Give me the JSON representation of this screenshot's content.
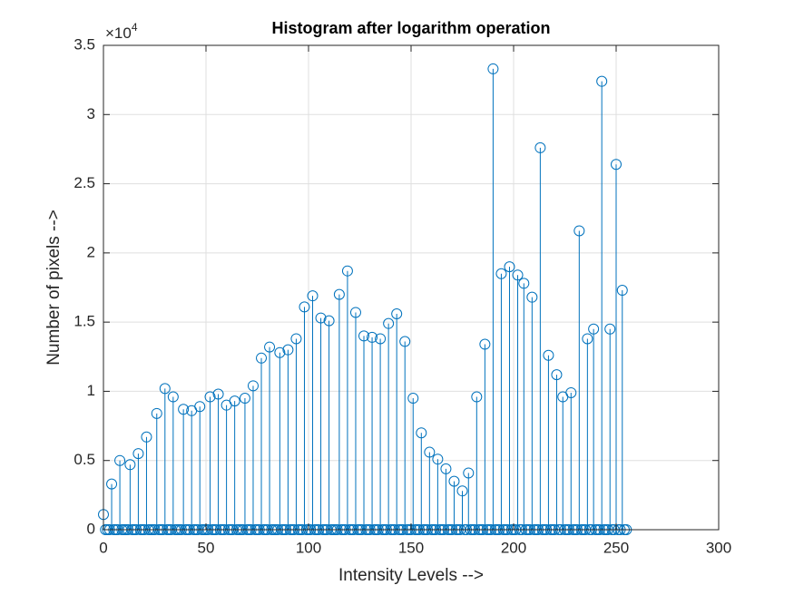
{
  "chart_data": {
    "type": "stem",
    "title": "Histogram after logarithm operation",
    "xlabel": "Intensity Levels -->",
    "ylabel": "Number of pixels  -->",
    "y_exponent_base": "×10",
    "y_exponent_power": "4",
    "color": "#0072bd",
    "grid": true,
    "xlim": [
      0,
      300
    ],
    "xticks": [
      0,
      50,
      100,
      150,
      200,
      250,
      300
    ],
    "ylim": [
      0,
      35000
    ],
    "yticks": [
      {
        "value": 0,
        "label": "0"
      },
      {
        "value": 5000,
        "label": "0.5"
      },
      {
        "value": 10000,
        "label": "1"
      },
      {
        "value": 15000,
        "label": "1.5"
      },
      {
        "value": 20000,
        "label": "2"
      },
      {
        "value": 25000,
        "label": "2.5"
      },
      {
        "value": 30000,
        "label": "3"
      },
      {
        "value": 35000,
        "label": "3.5"
      }
    ],
    "x": [
      0,
      1,
      2,
      3,
      4,
      5,
      6,
      7,
      8,
      9,
      10,
      11,
      12,
      13,
      14,
      15,
      16,
      17,
      18,
      19,
      20,
      21,
      22,
      23,
      24,
      25,
      26,
      27,
      28,
      29,
      30,
      31,
      32,
      33,
      34,
      35,
      36,
      37,
      38,
      39,
      40,
      41,
      42,
      43,
      44,
      45,
      46,
      47,
      48,
      49,
      50,
      51,
      52,
      53,
      54,
      55,
      56,
      57,
      58,
      59,
      60,
      61,
      62,
      63,
      64,
      65,
      66,
      67,
      68,
      69,
      70,
      71,
      72,
      73,
      74,
      75,
      76,
      77,
      78,
      79,
      80,
      81,
      82,
      83,
      84,
      85,
      86,
      87,
      88,
      89,
      90,
      91,
      92,
      93,
      94,
      95,
      96,
      97,
      98,
      99,
      100,
      101,
      102,
      103,
      104,
      105,
      106,
      107,
      108,
      109,
      110,
      111,
      112,
      113,
      114,
      115,
      116,
      117,
      118,
      119,
      120,
      121,
      122,
      123,
      124,
      125,
      126,
      127,
      128,
      129,
      130,
      131,
      132,
      133,
      134,
      135,
      136,
      137,
      138,
      139,
      140,
      141,
      142,
      143,
      144,
      145,
      146,
      147,
      148,
      149,
      150,
      151,
      152,
      153,
      154,
      155,
      156,
      157,
      158,
      159,
      160,
      161,
      162,
      163,
      164,
      165,
      166,
      167,
      168,
      169,
      170,
      171,
      172,
      173,
      174,
      175,
      176,
      177,
      178,
      179,
      180,
      181,
      182,
      183,
      184,
      185,
      186,
      187,
      188,
      189,
      190,
      191,
      192,
      193,
      194,
      195,
      196,
      197,
      198,
      199,
      200,
      201,
      202,
      203,
      204,
      205,
      206,
      207,
      208,
      209,
      210,
      211,
      212,
      213,
      214,
      215,
      216,
      217,
      218,
      219,
      220,
      221,
      222,
      223,
      224,
      225,
      226,
      227,
      228,
      229,
      230,
      231,
      232,
      233,
      234,
      235,
      236,
      237,
      238,
      239,
      240,
      241,
      242,
      243,
      244,
      245,
      246,
      247,
      248,
      249,
      250,
      251,
      252,
      253,
      254,
      255
    ],
    "values": [
      1100,
      0,
      0,
      0,
      3300,
      0,
      0,
      0,
      5000,
      0,
      0,
      0,
      0,
      4700,
      0,
      0,
      0,
      5500,
      0,
      0,
      0,
      6700,
      0,
      0,
      0,
      0,
      8400,
      0,
      0,
      0,
      10200,
      0,
      0,
      0,
      9600,
      0,
      0,
      0,
      0,
      8700,
      0,
      0,
      0,
      8600,
      0,
      0,
      0,
      8900,
      0,
      0,
      0,
      0,
      9600,
      0,
      0,
      0,
      9800,
      0,
      0,
      0,
      9000,
      0,
      0,
      0,
      9300,
      0,
      0,
      0,
      0,
      9500,
      0,
      0,
      0,
      10400,
      0,
      0,
      0,
      12400,
      0,
      0,
      0,
      13200,
      0,
      0,
      0,
      0,
      12800,
      0,
      0,
      0,
      13000,
      0,
      0,
      0,
      13800,
      0,
      0,
      0,
      16100,
      0,
      0,
      0,
      16900,
      0,
      0,
      0,
      15300,
      0,
      0,
      0,
      15100,
      0,
      0,
      0,
      0,
      17000,
      0,
      0,
      0,
      18700,
      0,
      0,
      0,
      15700,
      0,
      0,
      0,
      14000,
      0,
      0,
      0,
      13900,
      0,
      0,
      0,
      13800,
      0,
      0,
      0,
      14900,
      0,
      0,
      0,
      15600,
      0,
      0,
      0,
      13600,
      0,
      0,
      0,
      9500,
      0,
      0,
      0,
      7000,
      0,
      0,
      0,
      5600,
      0,
      0,
      0,
      5100,
      0,
      0,
      0,
      4400,
      0,
      0,
      0,
      3500,
      0,
      0,
      0,
      2800,
      0,
      0,
      4100,
      0,
      0,
      0,
      9600,
      0,
      0,
      0,
      13400,
      0,
      0,
      0,
      33300,
      0,
      0,
      0,
      18500,
      0,
      0,
      0,
      19000,
      0,
      0,
      0,
      18400,
      0,
      0,
      17800,
      0,
      0,
      0,
      16800,
      0,
      0,
      0,
      27600,
      0,
      0,
      0,
      12600,
      0,
      0,
      0,
      11200,
      0,
      0,
      9600,
      0,
      0,
      0,
      9900,
      0,
      0,
      0,
      21600,
      0,
      0,
      0,
      13800,
      0,
      0,
      14500,
      0,
      0,
      0,
      32400,
      0,
      0,
      0,
      14500,
      0,
      0,
      26400,
      0,
      0,
      17300,
      0,
      0
    ]
  }
}
